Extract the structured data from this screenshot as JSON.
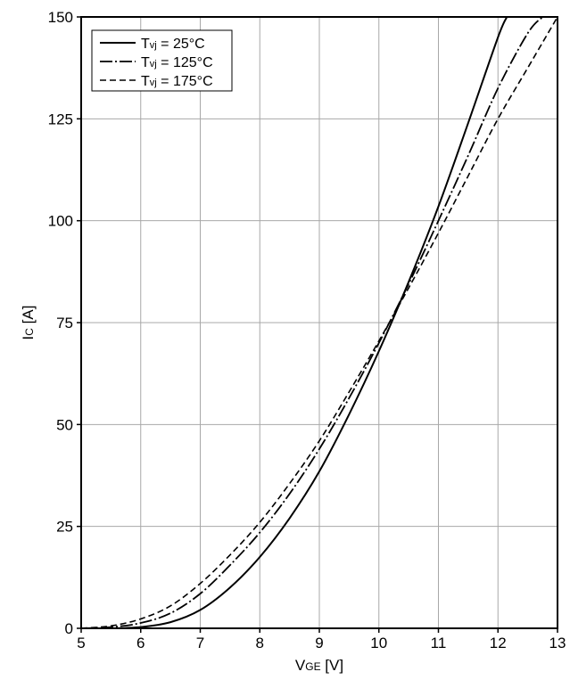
{
  "chart_data": {
    "type": "line",
    "title": "",
    "xlabel": {
      "main": "V",
      "sub": "GE",
      "unit": " [V]"
    },
    "ylabel": {
      "main": "I",
      "sub": "C",
      "unit": " [A]"
    },
    "xlim": [
      5,
      13
    ],
    "ylim": [
      0,
      150
    ],
    "x_ticks": [
      5,
      6,
      7,
      8,
      9,
      10,
      11,
      12,
      13
    ],
    "y_ticks": [
      0,
      25,
      50,
      75,
      100,
      125,
      150
    ],
    "grid": true,
    "legend_position": "top-left",
    "series": [
      {
        "name": {
          "main": "T",
          "sub": "vj",
          "rest": " = 25°C"
        },
        "style": "solid",
        "x": [
          5.0,
          5.5,
          6.0,
          6.5,
          7.0,
          7.5,
          8.0,
          8.5,
          9.0,
          9.5,
          10.0,
          10.5,
          11.0,
          11.5,
          12.0,
          12.15
        ],
        "y": [
          0,
          0,
          0.3,
          1.5,
          4.5,
          10,
          17.5,
          27,
          38.5,
          52.5,
          68,
          85,
          103.5,
          124,
          145,
          150
        ]
      },
      {
        "name": {
          "main": "T",
          "sub": "vj",
          "rest": " = 125°C"
        },
        "style": "dashdot",
        "x": [
          5.0,
          5.5,
          6.0,
          6.5,
          7.0,
          7.5,
          8.0,
          8.5,
          9.0,
          9.5,
          10.0,
          10.5,
          11.0,
          11.5,
          12.0,
          12.5,
          12.75
        ],
        "y": [
          0,
          0.3,
          1.3,
          3.7,
          8.5,
          15.5,
          23.5,
          33,
          44,
          56.5,
          70,
          84.5,
          100,
          116,
          132.5,
          146,
          150
        ]
      },
      {
        "name": {
          "main": "T",
          "sub": "vj",
          "rest": " = 175°C"
        },
        "style": "dashed",
        "x": [
          5.0,
          5.5,
          6.0,
          6.5,
          7.0,
          7.5,
          8.0,
          8.5,
          9.0,
          9.5,
          10.0,
          10.5,
          11.0,
          11.5,
          12.0,
          12.5,
          13.0
        ],
        "y": [
          0,
          0.6,
          2.3,
          5.5,
          11,
          18,
          26,
          35.5,
          46,
          58,
          70.5,
          83.5,
          97,
          111,
          125,
          137.5,
          150
        ]
      }
    ]
  }
}
